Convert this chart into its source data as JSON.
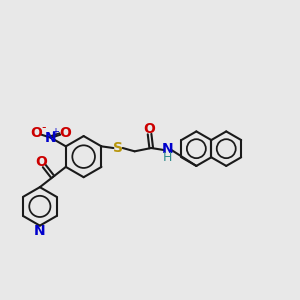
{
  "bg_color": "#e8e8e8",
  "bond_color": "#1a1a1a",
  "bond_width": 1.5,
  "S_color": "#b8960c",
  "O_color": "#cc0000",
  "N_color": "#0000cc",
  "H_color": "#2e8b8b",
  "xlim": [
    0.0,
    9.0
  ],
  "ylim": [
    0.5,
    6.5
  ]
}
